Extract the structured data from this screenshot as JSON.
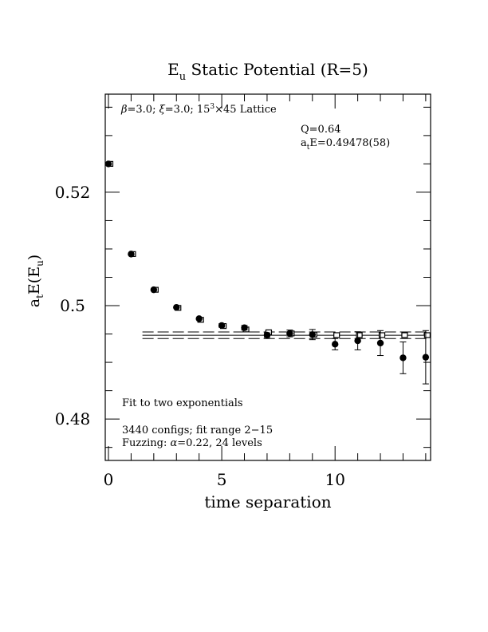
{
  "chart_data": {
    "type": "scatter",
    "title_main": "E",
    "title_sub": "u",
    "title_rest": " Static Potential (R=5)",
    "xlabel": "time separation",
    "ylabel": {
      "a": "a",
      "t": "t",
      "e": "E(E",
      "u": "u",
      "close": ")"
    },
    "xlim": [
      0,
      14.2
    ],
    "ylim": [
      0.4727,
      0.5373
    ],
    "xticks": [
      "0",
      "5",
      "10"
    ],
    "xtick_values": [
      0,
      5,
      10
    ],
    "yticks": [
      "0.48",
      "0.5",
      "0.52"
    ],
    "ytick_values": [
      0.48,
      0.5,
      0.52
    ],
    "lattice": {
      "beta": "=3.0; ",
      "xi": "=3.0; 15",
      "sup": "3",
      "tail": "×45 Lattice"
    },
    "fit_q": "Q=0.64",
    "fit_energy": {
      "a": "a",
      "t": "t",
      "rest": "E=0.49478(58)"
    },
    "notes": {
      "fit_type": "Fit to two exponentials",
      "configs": "3440 configs; fit range 2−15",
      "fuzzing": "Fuzzing: ",
      "fuzzing_rest": "=0.22, 24 levels"
    },
    "fit": {
      "value": 0.49478,
      "error": 0.00058,
      "t_start": 1.5,
      "t_end": 14.2
    },
    "points": [
      {
        "t": 0,
        "y": 0.525,
        "err": 0.0002
      },
      {
        "t": 1,
        "y": 0.5091,
        "err": 0.0002
      },
      {
        "t": 2,
        "y": 0.5028,
        "err": 0.0002
      },
      {
        "t": 3,
        "y": 0.4997,
        "err": 0.0002
      },
      {
        "t": 4,
        "y": 0.4977,
        "err": 0.0002
      },
      {
        "t": 5,
        "y": 0.4965,
        "err": 0.0003
      },
      {
        "t": 6,
        "y": 0.4961,
        "err": 0.0004
      },
      {
        "t": 7,
        "y": 0.4948,
        "err": 0.0004
      },
      {
        "t": 8,
        "y": 0.4951,
        "err": 0.0006
      },
      {
        "t": 9,
        "y": 0.4949,
        "err": 0.0009
      },
      {
        "t": 10,
        "y": 0.4932,
        "err": 0.001
      },
      {
        "t": 11,
        "y": 0.4938,
        "err": 0.0016
      },
      {
        "t": 12,
        "y": 0.4934,
        "err": 0.0022
      },
      {
        "t": 13,
        "y": 0.4908,
        "err": 0.0028
      },
      {
        "t": 14,
        "y": 0.4909,
        "err": 0.0047
      }
    ],
    "fit_points": [
      {
        "t": 0,
        "y": 0.525
      },
      {
        "t": 1,
        "y": 0.5091
      },
      {
        "t": 2,
        "y": 0.5028
      },
      {
        "t": 3,
        "y": 0.4996
      },
      {
        "t": 4,
        "y": 0.4975
      },
      {
        "t": 5,
        "y": 0.4964
      },
      {
        "t": 6,
        "y": 0.4958
      },
      {
        "t": 7,
        "y": 0.4953
      },
      {
        "t": 8,
        "y": 0.4951
      },
      {
        "t": 9,
        "y": 0.4949
      },
      {
        "t": 10,
        "y": 0.4948
      },
      {
        "t": 11,
        "y": 0.4948
      },
      {
        "t": 12,
        "y": 0.4948
      },
      {
        "t": 13,
        "y": 0.4948
      },
      {
        "t": 14,
        "y": 0.4948
      }
    ],
    "grid": false,
    "legend": "none"
  }
}
